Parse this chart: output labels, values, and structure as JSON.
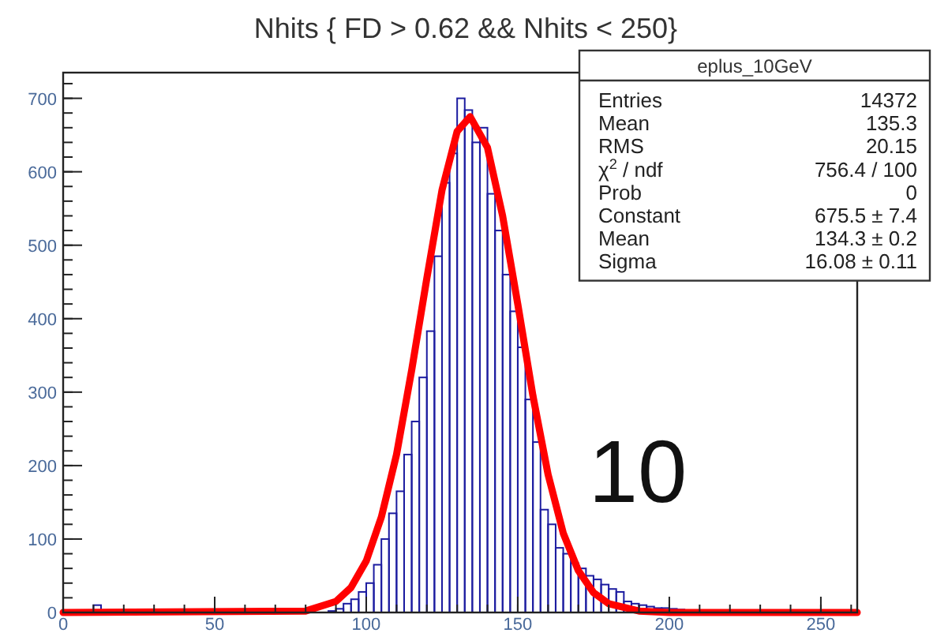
{
  "chart_data": {
    "type": "histogram",
    "title": "Nhits { FD > 0.62 && Nhits < 250}",
    "bins": [
      0,
      2.5,
      5,
      7.5,
      10,
      12.5,
      15,
      17.5,
      20,
      22.5,
      25,
      27.5,
      30,
      32.5,
      35,
      37.5,
      40,
      42.5,
      45,
      47.5,
      50,
      52.5,
      55,
      57.5,
      60,
      62.5,
      65,
      67.5,
      70,
      72.5,
      75,
      77.5,
      80,
      82.5,
      85,
      87.5,
      90,
      92.5,
      95,
      97.5,
      100,
      102.5,
      105,
      107.5,
      110,
      112.5,
      115,
      117.5,
      120,
      122.5,
      125,
      127.5,
      130,
      132.5,
      135,
      137.5,
      140,
      142.5,
      145,
      147.5,
      150,
      152.5,
      155,
      157.5,
      160,
      162.5,
      165,
      167.5,
      170,
      172.5,
      175,
      177.5,
      180,
      182.5,
      185,
      187.5,
      190,
      192.5,
      195,
      197.5,
      200,
      202.5,
      205,
      207.5,
      210,
      212.5,
      215,
      217.5,
      220,
      222.5,
      225,
      227.5,
      230,
      232.5,
      235,
      237.5,
      240,
      242.5,
      245,
      247.5,
      250,
      252.5,
      255,
      257.5,
      260,
      262.5
    ],
    "series": [
      {
        "color": "#1c1ca0",
        "values": [
          null,
          null,
          null,
          null,
          10,
          null,
          null,
          null,
          null,
          null,
          null,
          null,
          null,
          null,
          null,
          null,
          null,
          null,
          null,
          null,
          null,
          null,
          null,
          null,
          null,
          null,
          null,
          null,
          null,
          null,
          null,
          null,
          null,
          null,
          null,
          2,
          5,
          12,
          18,
          28,
          40,
          65,
          100,
          135,
          165,
          215,
          260,
          320,
          383,
          485,
          585,
          625,
          700,
          684,
          640,
          660,
          570,
          520,
          460,
          410,
          361,
          290,
          232,
          140,
          120,
          88,
          80,
          67,
          60,
          50,
          45,
          38,
          32,
          28,
          15,
          12,
          10,
          8,
          6,
          6,
          5,
          4,
          3,
          3,
          2,
          3,
          2,
          1,
          2,
          1,
          1,
          null,
          null,
          null,
          null,
          null,
          null,
          null,
          null,
          null,
          null,
          null,
          null,
          null,
          null
        ]
      },
      {
        "type": "line",
        "color": "#ff0000",
        "x": [
          0,
          80,
          90,
          95,
          100,
          105,
          110,
          115,
          120,
          125,
          130,
          134.3,
          140,
          145,
          150,
          155,
          160,
          165,
          170,
          175,
          180,
          190,
          200,
          262
        ],
        "values": [
          0,
          2,
          15,
          34,
          70,
          130,
          215,
          330,
          455,
          575,
          655,
          675,
          633,
          540,
          420,
          295,
          188,
          108,
          57,
          27,
          12,
          2,
          0,
          0
        ]
      }
    ],
    "xlim": [
      0,
      262
    ],
    "ylim": [
      0,
      735
    ],
    "xticks": [
      0,
      50,
      100,
      150,
      200,
      250
    ],
    "yticks": [
      0,
      100,
      200,
      300,
      400,
      500,
      600,
      700
    ],
    "grid": false,
    "annotations": [
      "eplus_10GeV",
      "Entries",
      "14372",
      "Mean",
      "135.3",
      "RMS",
      "20.15",
      "χ$^{2}$ / ndf",
      "756.4 / 100",
      "Prob",
      "0",
      "Constant",
      "675.5 ± 7.4",
      "Mean",
      "134.3 ± 0.2",
      "Sigma",
      "16.08 ± 0.11",
      "10"
    ]
  }
}
